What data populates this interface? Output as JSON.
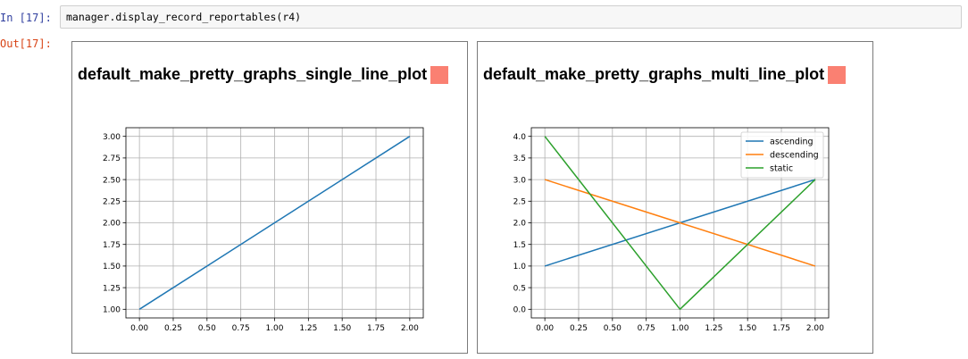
{
  "cell": {
    "in_prompt": "In [17]:",
    "out_prompt": "Out[17]:",
    "code": "manager.display_record_reportables(r4)"
  },
  "panels": [
    {
      "title": "default_make_pretty_graphs_single_line_plot",
      "status_color": "#fa8072"
    },
    {
      "title": "default_make_pretty_graphs_multi_line_plot",
      "status_color": "#fa8072"
    }
  ],
  "chart_data": [
    {
      "type": "line",
      "title": "",
      "xlabel": "",
      "ylabel": "",
      "xlim": [
        -0.1,
        2.1
      ],
      "ylim": [
        0.9,
        3.1
      ],
      "grid": true,
      "xticks": [
        "0.00",
        "0.25",
        "0.50",
        "0.75",
        "1.00",
        "1.25",
        "1.50",
        "1.75",
        "2.00"
      ],
      "yticks": [
        "1.00",
        "1.25",
        "1.50",
        "1.75",
        "2.00",
        "2.25",
        "2.50",
        "2.75",
        "3.00"
      ],
      "series": [
        {
          "x": [
            0,
            1,
            2
          ],
          "values": [
            1,
            2,
            3
          ],
          "color": "#1f77b4"
        }
      ]
    },
    {
      "type": "line",
      "title": "",
      "xlabel": "",
      "ylabel": "",
      "xlim": [
        -0.1,
        2.1
      ],
      "ylim": [
        -0.2,
        4.2
      ],
      "grid": true,
      "legend": "top-right",
      "xticks": [
        "0.00",
        "0.25",
        "0.50",
        "0.75",
        "1.00",
        "1.25",
        "1.50",
        "1.75",
        "2.00"
      ],
      "yticks": [
        "0.0",
        "0.5",
        "1.0",
        "1.5",
        "2.0",
        "2.5",
        "3.0",
        "3.5",
        "4.0"
      ],
      "series": [
        {
          "name": "ascending",
          "x": [
            0,
            1,
            2
          ],
          "values": [
            1,
            2,
            3
          ],
          "color": "#1f77b4"
        },
        {
          "name": "descending",
          "x": [
            0,
            1,
            2
          ],
          "values": [
            3,
            2,
            1
          ],
          "color": "#ff7f0e"
        },
        {
          "name": "static",
          "x": [
            0,
            1,
            2
          ],
          "values": [
            4,
            0,
            3
          ],
          "color": "#2ca02c"
        }
      ]
    }
  ]
}
